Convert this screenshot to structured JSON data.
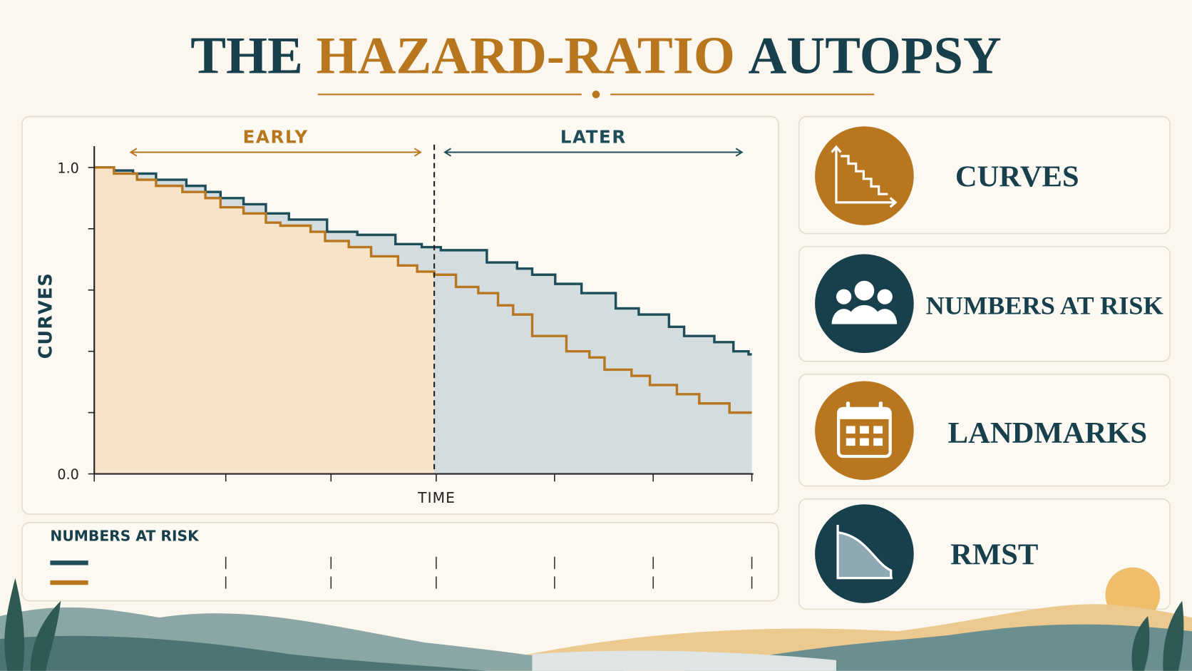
{
  "title_parts": [
    "THE",
    "HAZARD-RATIO",
    "AUTOPSY"
  ],
  "chart_data": {
    "type": "step",
    "y_label": "CURVES",
    "x_label": "TIME",
    "xlim": [
      0,
      10
    ],
    "xticks": [
      0,
      2.0,
      3.6,
      5.2,
      7.0,
      8.5,
      10
    ],
    "ylim": [
      0,
      1
    ],
    "yticks": [
      {
        "value": 0,
        "label": "0.0"
      },
      0.2,
      0.4,
      0.6,
      0.8,
      {
        "value": 1,
        "label": "1.0"
      }
    ],
    "landmark": 5.17,
    "annotations": [
      "EARLY",
      "LATER"
    ],
    "series": [
      {
        "color": "#1d4e5a",
        "fill": "#d3dde0",
        "x": [
          0,
          0.3,
          0.59,
          0.94,
          1.4,
          1.69,
          1.92,
          2.27,
          2.61,
          2.96,
          3.54,
          4.0,
          4.58,
          4.98,
          5.27,
          5.97,
          6.43,
          6.66,
          7.01,
          7.41,
          7.93,
          8.28,
          8.74,
          8.97,
          9.43,
          9.72,
          9.95,
          10
        ],
        "values": [
          1.0,
          0.99,
          0.98,
          0.96,
          0.94,
          0.92,
          0.9,
          0.88,
          0.85,
          0.83,
          0.79,
          0.78,
          0.75,
          0.74,
          0.73,
          0.69,
          0.67,
          0.65,
          0.62,
          0.59,
          0.54,
          0.52,
          0.48,
          0.45,
          0.43,
          0.4,
          0.39,
          0.39
        ]
      },
      {
        "color": "#b8761f",
        "fill": "#f6e3c8",
        "x": [
          0,
          0.3,
          0.65,
          0.94,
          1.34,
          1.69,
          1.92,
          2.27,
          2.61,
          2.83,
          3.29,
          3.51,
          3.87,
          4.21,
          4.62,
          4.91,
          5.17,
          5.5,
          5.84,
          6.14,
          6.37,
          6.66,
          7.18,
          7.53,
          7.76,
          8.17,
          8.45,
          8.86,
          9.2,
          9.66,
          10
        ],
        "values": [
          1.0,
          0.98,
          0.96,
          0.94,
          0.92,
          0.9,
          0.87,
          0.85,
          0.82,
          0.81,
          0.79,
          0.76,
          0.74,
          0.71,
          0.68,
          0.66,
          0.65,
          0.61,
          0.59,
          0.55,
          0.52,
          0.45,
          0.4,
          0.38,
          0.34,
          0.32,
          0.29,
          0.26,
          0.23,
          0.2,
          0.2
        ]
      }
    ]
  },
  "risk_panel": {
    "title": "NUMBERS AT RISK"
  },
  "cards": [
    "CURVES",
    "NUMBERS AT RISK",
    "LANDMARKS",
    "RMST"
  ]
}
